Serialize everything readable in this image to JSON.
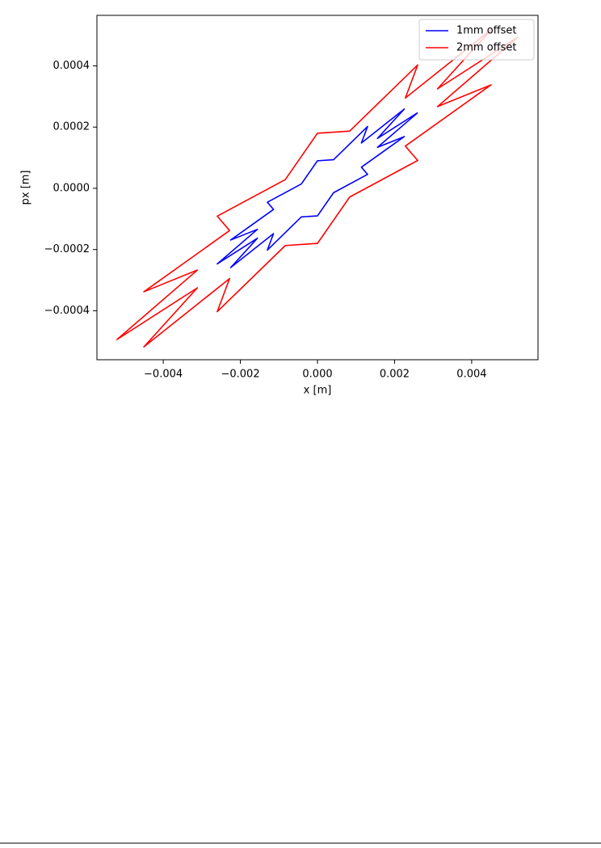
{
  "chart_data": {
    "type": "line",
    "xlabel": "x [m]",
    "ylabel": "px [m]",
    "xlim": [
      -0.00572,
      0.00572
    ],
    "ylim": [
      -0.00056,
      0.000565
    ],
    "xticks": [
      {
        "value": -0.004,
        "label": "−0.004"
      },
      {
        "value": -0.002,
        "label": "−0.002"
      },
      {
        "value": 0,
        "label": "0.000"
      },
      0.002,
      0.004
    ],
    "yticks": [
      {
        "value": -0.0004,
        "label": "−0.0004"
      },
      {
        "value": -0.0002,
        "label": "−0.0002"
      },
      {
        "value": 0,
        "label": "0.0000"
      },
      0.0002,
      0.0004
    ],
    "legend": "upper right",
    "series": [
      {
        "name": "1mm offset",
        "color": "#0000ff",
        "x": [
          0.0026,
          0.001557,
          0.002252,
          0.00114,
          0.0013,
          0.000418,
          0,
          -0.000418,
          -0.0013,
          -0.00114,
          -0.002252,
          -0.001557,
          -0.0026,
          -0.001557,
          -0.002252,
          -0.00114,
          -0.0013,
          -0.000418,
          0,
          0.000418,
          0.0013,
          0.00114,
          0.002252,
          0.001557,
          0.0026
        ],
        "values": [
          0.000247,
          0.000163,
          0.000259,
          0.000148,
          0.000202,
          9.35e-05,
          9e-05,
          1.43e-05,
          -4.55e-05,
          -6.9e-05,
          -0.000169,
          -0.000134,
          -0.000247,
          -0.000163,
          -0.000259,
          -0.000148,
          -0.000202,
          -9.35e-05,
          -9e-05,
          -1.43e-05,
          4.55e-05,
          6.9e-05,
          0.000169,
          0.000134,
          0.000247
        ]
      },
      {
        "name": "2mm offset",
        "color": "#ff0000",
        "x": [
          0.0052,
          0.003114,
          0.004503,
          0.002279,
          0.0026,
          0.000835,
          0,
          -0.000835,
          -0.0026,
          -0.002279,
          -0.004503,
          -0.003114,
          -0.0052,
          -0.003114,
          -0.004503,
          -0.002279,
          -0.0026,
          -0.000835,
          0,
          0.000835,
          0.0026,
          0.002279,
          0.004503,
          0.003114,
          0.0052
        ],
        "values": [
          0.000494,
          0.000325,
          0.000518,
          0.000295,
          0.000403,
          0.000187,
          0.00018,
          2.85e-05,
          -9.1e-05,
          -0.000138,
          -0.000338,
          -0.000267,
          -0.000494,
          -0.000325,
          -0.000518,
          -0.000295,
          -0.000403,
          -0.000187,
          -0.00018,
          -2.85e-05,
          9.1e-05,
          0.000138,
          0.000338,
          0.000267,
          0.000494
        ]
      }
    ]
  }
}
